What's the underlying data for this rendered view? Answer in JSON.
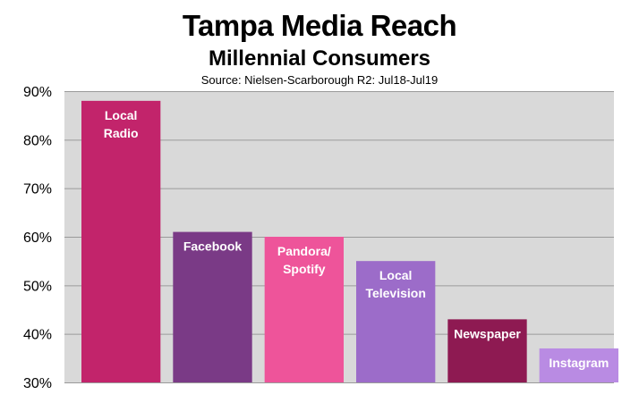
{
  "chart_data": {
    "type": "bar",
    "title": "Tampa Media Reach",
    "subtitle": "Millennial Consumers",
    "source": "Source: Nielsen-Scarborough R2: Jul18-Jul19",
    "categories": [
      [
        "Local",
        "Radio"
      ],
      [
        "Facebook"
      ],
      [
        "Pandora/",
        "Spotify"
      ],
      [
        "Local",
        "Television"
      ],
      [
        "Newspaper"
      ],
      [
        "Instagram"
      ]
    ],
    "values": [
      88,
      61,
      60,
      55,
      43,
      37
    ],
    "colors": [
      "#c2246b",
      "#7a3a86",
      "#ee549a",
      "#9c6cc9",
      "#8e1a52",
      "#b98be3"
    ],
    "plot_background": "#d9d9d9",
    "gridline_color": "#9a9a9a",
    "ylim": [
      30,
      90
    ],
    "yticks": [
      30,
      40,
      50,
      60,
      70,
      80,
      90
    ],
    "ytick_labels": [
      "30%",
      "40%",
      "50%",
      "60%",
      "70%",
      "80%",
      "90%"
    ],
    "grid": true
  }
}
